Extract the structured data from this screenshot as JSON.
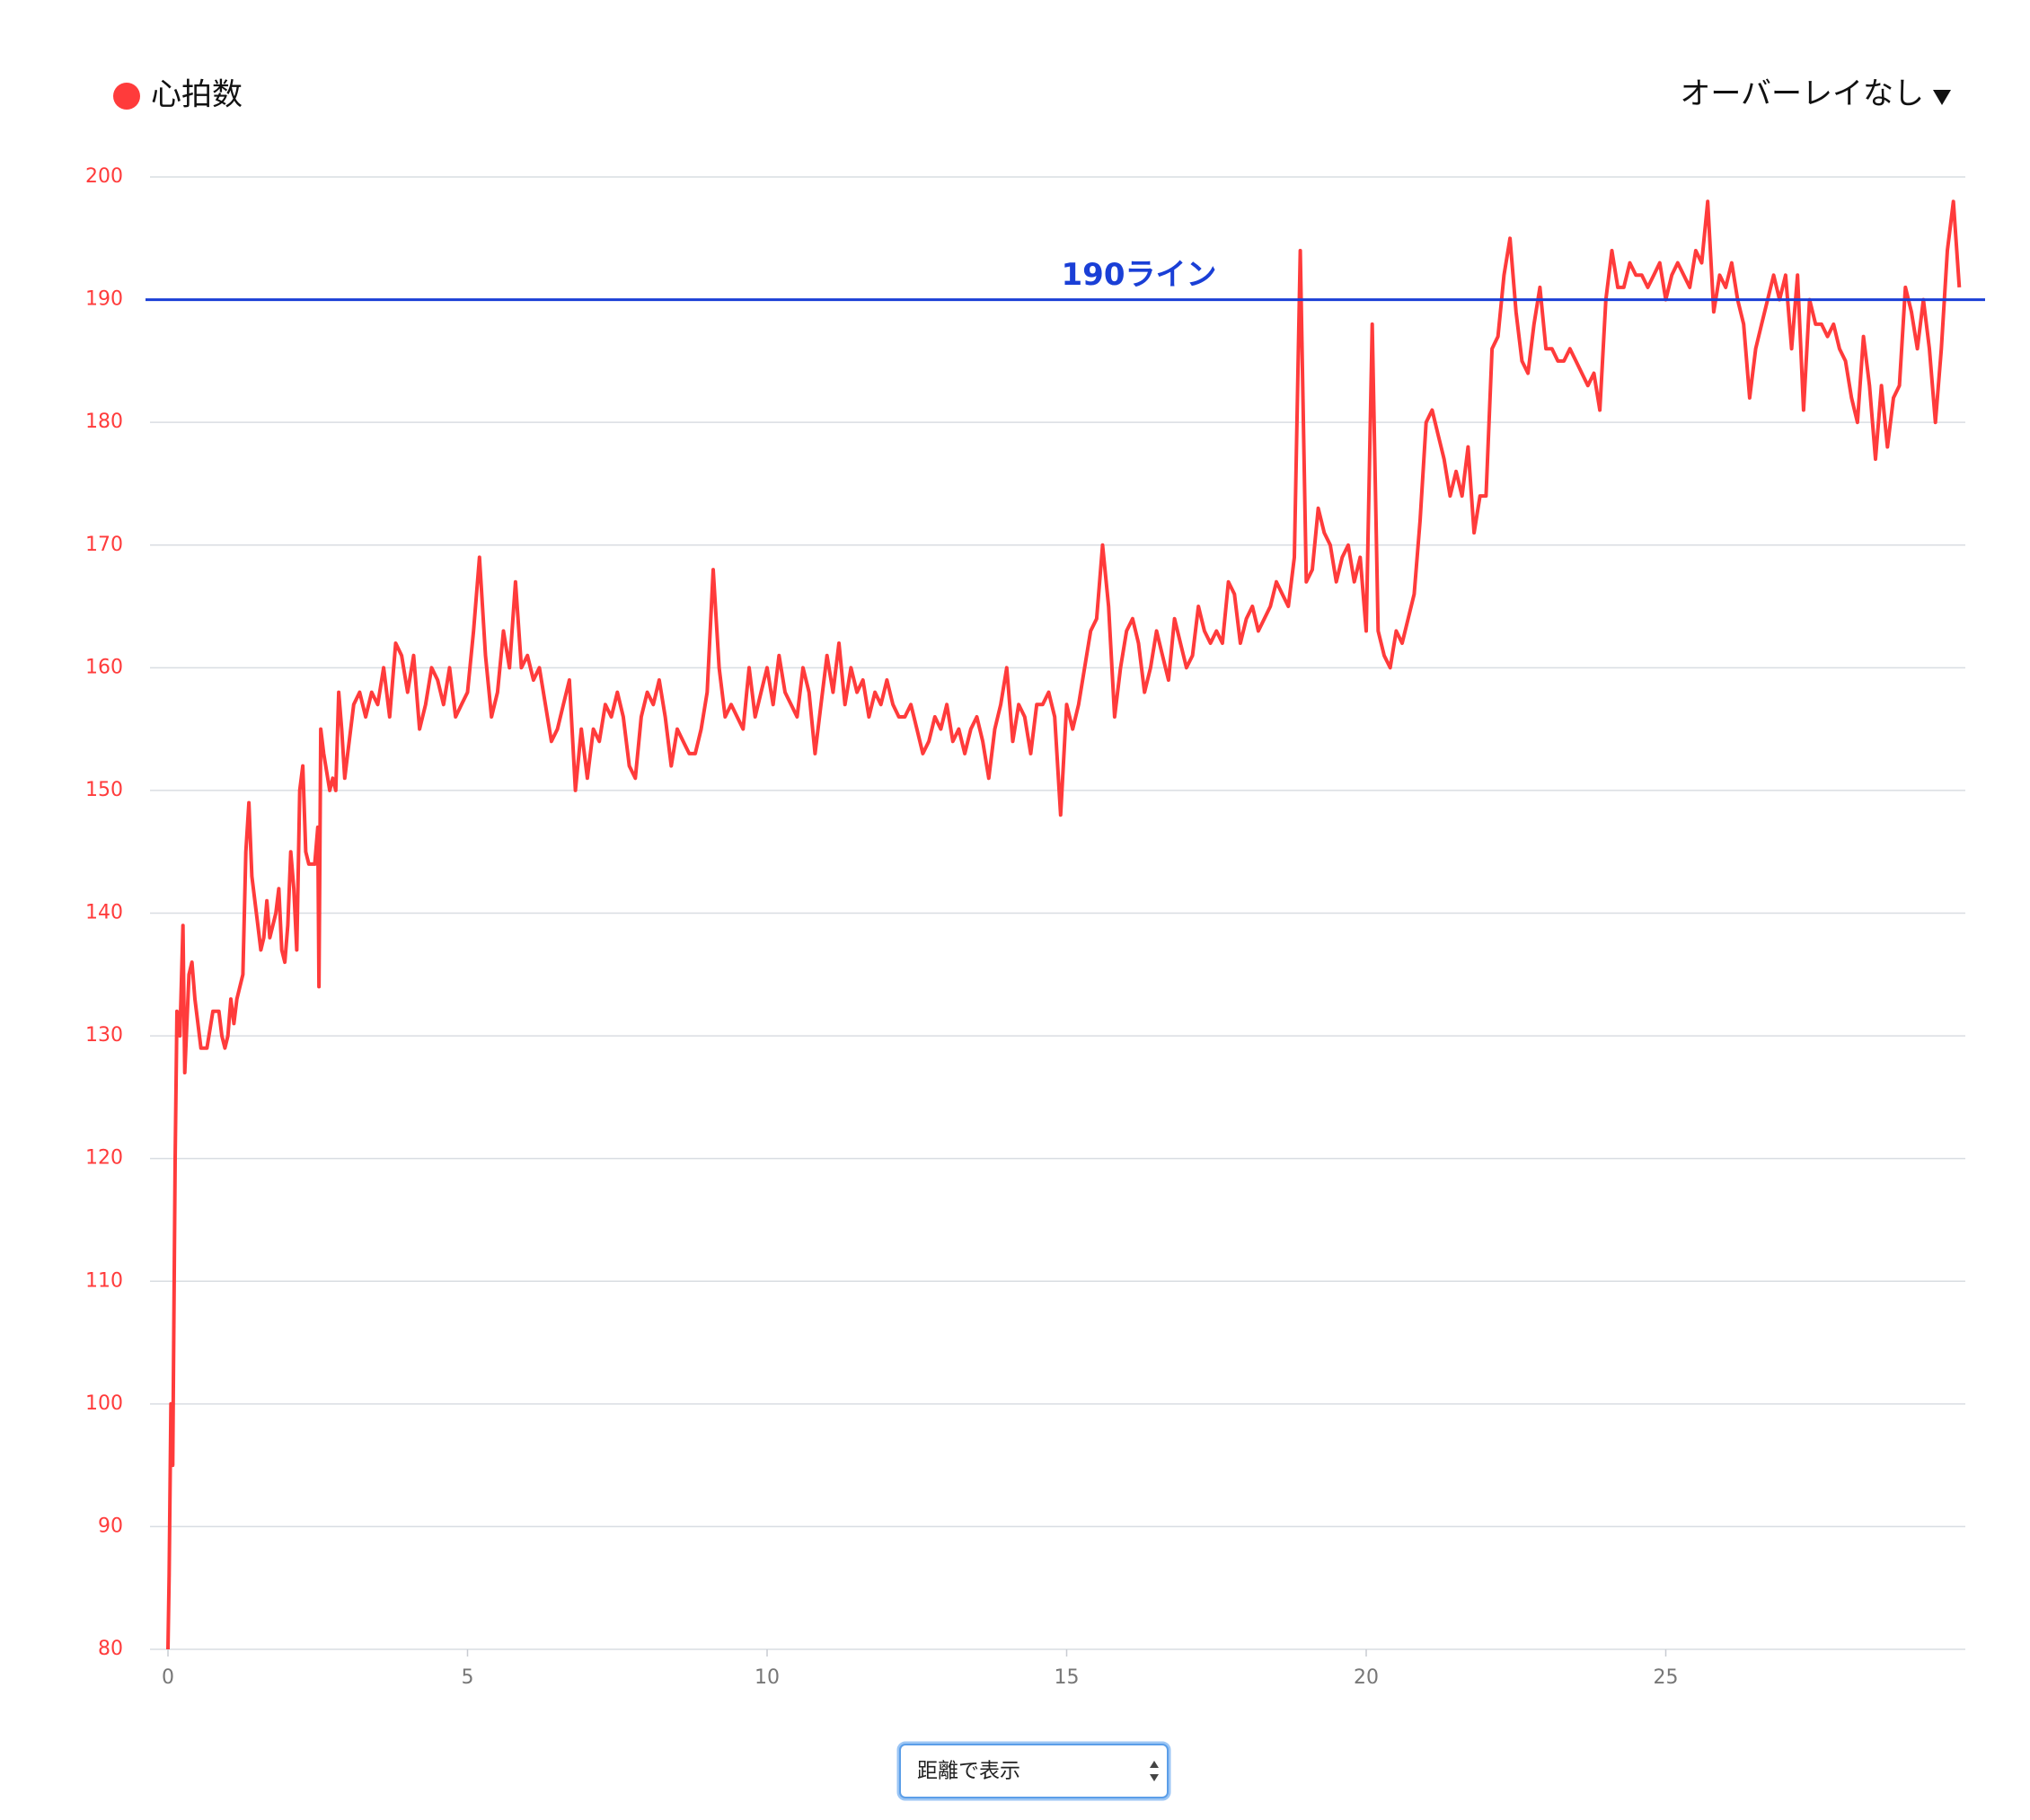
{
  "legend_label": "心拍数",
  "overlay_dropdown": "オーバーレイなし",
  "axis_select": "距離で表示",
  "chart_data": {
    "type": "line",
    "series": [
      {
        "name": "心拍数",
        "color": "#ff3b3b",
        "values": [
          80,
          86,
          100,
          95,
          120,
          132,
          130,
          139,
          127,
          135,
          136,
          133,
          129,
          129,
          132,
          132,
          130,
          129,
          130,
          133,
          131,
          133,
          135,
          145,
          149,
          143,
          139,
          137,
          138,
          141,
          138,
          140,
          142,
          137,
          136,
          139,
          145,
          142,
          137,
          150,
          152,
          145,
          144,
          144,
          147,
          134,
          155,
          153,
          150,
          151,
          150,
          158,
          155,
          151,
          153,
          157,
          158,
          156,
          158,
          157,
          160,
          156,
          162,
          161,
          158,
          161,
          155,
          157,
          160,
          159,
          157,
          160,
          156,
          157,
          158,
          163,
          169,
          161,
          156,
          158,
          163,
          160,
          167,
          160,
          161,
          159,
          160,
          157,
          154,
          155,
          157,
          159,
          150,
          155,
          151,
          155,
          154,
          157,
          156,
          158,
          156,
          152,
          151,
          156,
          158,
          157,
          159,
          156,
          152,
          155,
          154,
          153,
          153,
          155,
          158,
          168,
          160,
          156,
          157,
          156,
          155,
          160,
          156,
          158,
          160,
          157,
          161,
          158,
          157,
          156,
          160,
          158,
          153,
          157,
          161,
          158,
          162,
          157,
          160,
          158,
          159,
          156,
          158,
          157,
          159,
          157,
          156,
          156,
          157,
          155,
          153,
          154,
          156,
          155,
          157,
          154,
          155,
          153,
          155,
          156,
          154,
          151,
          155,
          157,
          160,
          154,
          157,
          156,
          153,
          157,
          157,
          158,
          156,
          148,
          157,
          155,
          157,
          160,
          163,
          164,
          170,
          165,
          156,
          160,
          163,
          164,
          162,
          158,
          160,
          163,
          161,
          159,
          164,
          162,
          160,
          161,
          165,
          163,
          162,
          163,
          162,
          167,
          166,
          162,
          164,
          165,
          163,
          164,
          165,
          167,
          166,
          165,
          169,
          194,
          167,
          168,
          173,
          171,
          170,
          167,
          169,
          170,
          167,
          169,
          163,
          188,
          163,
          161,
          160,
          163,
          162,
          164,
          166,
          172,
          180,
          181,
          179,
          177,
          174,
          176,
          174,
          178,
          171,
          174,
          174,
          186,
          187,
          192,
          195,
          189,
          185,
          184,
          188,
          191,
          186,
          186,
          185,
          185,
          186,
          185,
          184,
          183,
          184,
          181,
          190,
          194,
          191,
          191,
          193,
          192,
          192,
          191,
          192,
          193,
          190,
          192,
          193,
          192,
          191,
          194,
          193,
          198,
          189,
          192,
          191,
          193,
          190,
          188,
          182,
          186,
          188,
          190,
          192,
          190,
          192,
          186,
          192,
          181,
          190,
          188,
          188,
          187,
          188,
          186,
          185,
          182,
          180,
          187,
          183,
          177,
          183,
          178,
          182,
          183,
          191,
          189,
          186,
          190,
          186,
          180,
          186,
          194,
          198,
          191
        ]
      }
    ],
    "x": [
      0,
      0.02,
      0.05,
      0.08,
      0.12,
      0.15,
      0.2,
      0.25,
      0.28,
      0.35,
      0.4,
      0.45,
      0.55,
      0.65,
      0.75,
      0.85,
      0.9,
      0.95,
      1.0,
      1.05,
      1.1,
      1.15,
      1.25,
      1.3,
      1.35,
      1.4,
      1.5,
      1.55,
      1.6,
      1.65,
      1.7,
      1.8,
      1.85,
      1.9,
      1.95,
      2.0,
      2.05,
      2.1,
      2.15,
      2.2,
      2.25,
      2.3,
      2.35,
      2.45,
      2.5,
      2.52,
      2.55,
      2.6,
      2.7,
      2.75,
      2.8,
      2.85,
      2.9,
      2.95,
      3.0,
      3.1,
      3.2,
      3.3,
      3.4,
      3.5,
      3.6,
      3.7,
      3.8,
      3.9,
      4.0,
      4.1,
      4.2,
      4.3,
      4.4,
      4.5,
      4.6,
      4.7,
      4.8,
      4.9,
      5.0,
      5.1,
      5.2,
      5.3,
      5.4,
      5.5,
      5.6,
      5.7,
      5.8,
      5.9,
      6.0,
      6.1,
      6.2,
      6.3,
      6.4,
      6.5,
      6.6,
      6.7,
      6.8,
      6.9,
      7.0,
      7.1,
      7.2,
      7.3,
      7.4,
      7.5,
      7.6,
      7.7,
      7.8,
      7.9,
      8.0,
      8.1,
      8.2,
      8.3,
      8.4,
      8.5,
      8.6,
      8.7,
      8.8,
      8.9,
      9.0,
      9.1,
      9.2,
      9.3,
      9.4,
      9.5,
      9.6,
      9.7,
      9.8,
      9.9,
      10.0,
      10.1,
      10.2,
      10.3,
      10.4,
      10.5,
      10.6,
      10.7,
      10.8,
      10.9,
      11.0,
      11.1,
      11.2,
      11.3,
      11.4,
      11.5,
      11.6,
      11.7,
      11.8,
      11.9,
      12.0,
      12.1,
      12.2,
      12.3,
      12.4,
      12.5,
      12.6,
      12.7,
      12.8,
      12.9,
      13.0,
      13.1,
      13.2,
      13.3,
      13.4,
      13.5,
      13.6,
      13.7,
      13.8,
      13.9,
      14.0,
      14.1,
      14.2,
      14.3,
      14.4,
      14.5,
      14.6,
      14.7,
      14.8,
      14.9,
      15.0,
      15.1,
      15.2,
      15.3,
      15.4,
      15.5,
      15.6,
      15.7,
      15.8,
      15.9,
      16.0,
      16.1,
      16.2,
      16.3,
      16.4,
      16.5,
      16.6,
      16.7,
      16.8,
      16.9,
      17.0,
      17.1,
      17.2,
      17.3,
      17.4,
      17.5,
      17.6,
      17.7,
      17.8,
      17.9,
      18.0,
      18.1,
      18.2,
      18.3,
      18.4,
      18.5,
      18.6,
      18.7,
      18.8,
      18.9,
      19.0,
      19.1,
      19.2,
      19.3,
      19.4,
      19.5,
      19.6,
      19.7,
      19.8,
      19.9,
      20.0,
      20.1,
      20.2,
      20.3,
      20.4,
      20.5,
      20.6,
      20.7,
      20.8,
      20.9,
      21.0,
      21.1,
      21.2,
      21.3,
      21.4,
      21.5,
      21.6,
      21.7,
      21.8,
      21.9,
      22.0,
      22.1,
      22.2,
      22.3,
      22.4,
      22.5,
      22.6,
      22.7,
      22.8,
      22.9,
      23.0,
      23.1,
      23.2,
      23.3,
      23.4,
      23.5,
      23.6,
      23.7,
      23.8,
      23.9,
      24.0,
      24.1,
      24.2,
      24.3,
      24.4,
      24.5,
      24.6,
      24.7,
      24.8,
      24.9,
      25.0,
      25.1,
      25.2,
      25.3,
      25.4,
      25.5,
      25.6,
      25.7,
      25.8,
      25.9,
      26.0,
      26.1,
      26.2,
      26.3,
      26.4,
      26.5,
      26.6,
      26.7,
      26.8,
      26.9,
      27.0,
      27.1,
      27.2,
      27.3,
      27.4,
      27.5,
      27.6,
      27.7,
      27.8,
      27.9,
      28.0,
      28.1,
      28.2,
      28.3,
      28.4,
      28.5,
      28.6,
      28.7,
      28.8,
      28.9,
      29.0,
      29.1,
      29.2,
      29.3,
      29.4,
      29.5,
      29.6,
      29.7,
      29.8,
      29.9
    ],
    "xlim": [
      -0.3,
      30
    ],
    "ylim": [
      80,
      200
    ],
    "xticks": [
      0,
      5,
      10,
      15,
      20,
      25
    ],
    "yticks": [
      80,
      90,
      100,
      110,
      120,
      130,
      140,
      150,
      160,
      170,
      180,
      190,
      200
    ],
    "grid": true,
    "reference_line": {
      "value": 190,
      "label": "190ライン",
      "color": "#1a3fd6"
    }
  }
}
